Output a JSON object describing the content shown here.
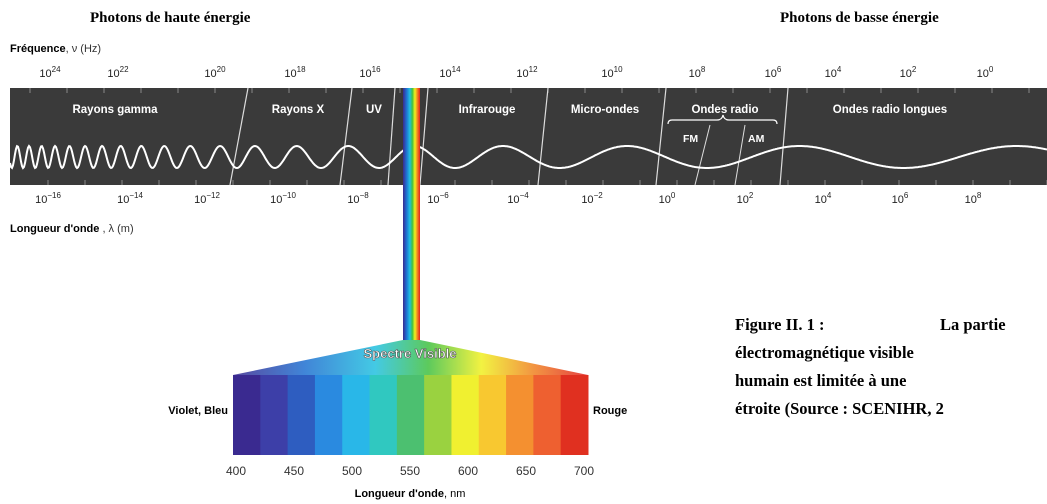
{
  "header": {
    "high": "Photons de haute énergie",
    "low": "Photons de basse énergie"
  },
  "frequency": {
    "label": "Fréquence",
    "unit": ", ν (Hz)",
    "base": "10",
    "exponents": [
      "24",
      "22",
      "20",
      "18",
      "16",
      "14",
      "12",
      "10",
      "8",
      "6",
      "4",
      "2",
      "0"
    ]
  },
  "bands": [
    "Rayons gamma",
    "Rayons X",
    "UV",
    "Infrarouge",
    "Micro-ondes",
    "Ondes radio",
    "Ondes radio longues"
  ],
  "sub_bands": [
    "FM",
    "AM"
  ],
  "wavelength": {
    "label": "Longueur d'onde",
    "unit": " , λ (m)",
    "base": "10",
    "exponents": [
      "−16",
      "−14",
      "−12",
      "−10",
      "−8",
      "−6",
      "−4",
      "−2",
      "0",
      "2",
      "4",
      "6",
      "8"
    ]
  },
  "visible": {
    "title": "Spectre Visible",
    "left_label": "Violet, Bleu",
    "right_label": "Rouge",
    "ticks": [
      400,
      450,
      500,
      550,
      600,
      650,
      700
    ],
    "axis_label": "Longueur d'onde",
    "axis_unit": ", nm"
  },
  "caption": {
    "lines": [
      "Figure II. 1 :",
      "La partie",
      "électromagnétique   visible",
      "humain est limitée à une",
      "étroite (Source : SCENIHR, 2"
    ]
  }
}
